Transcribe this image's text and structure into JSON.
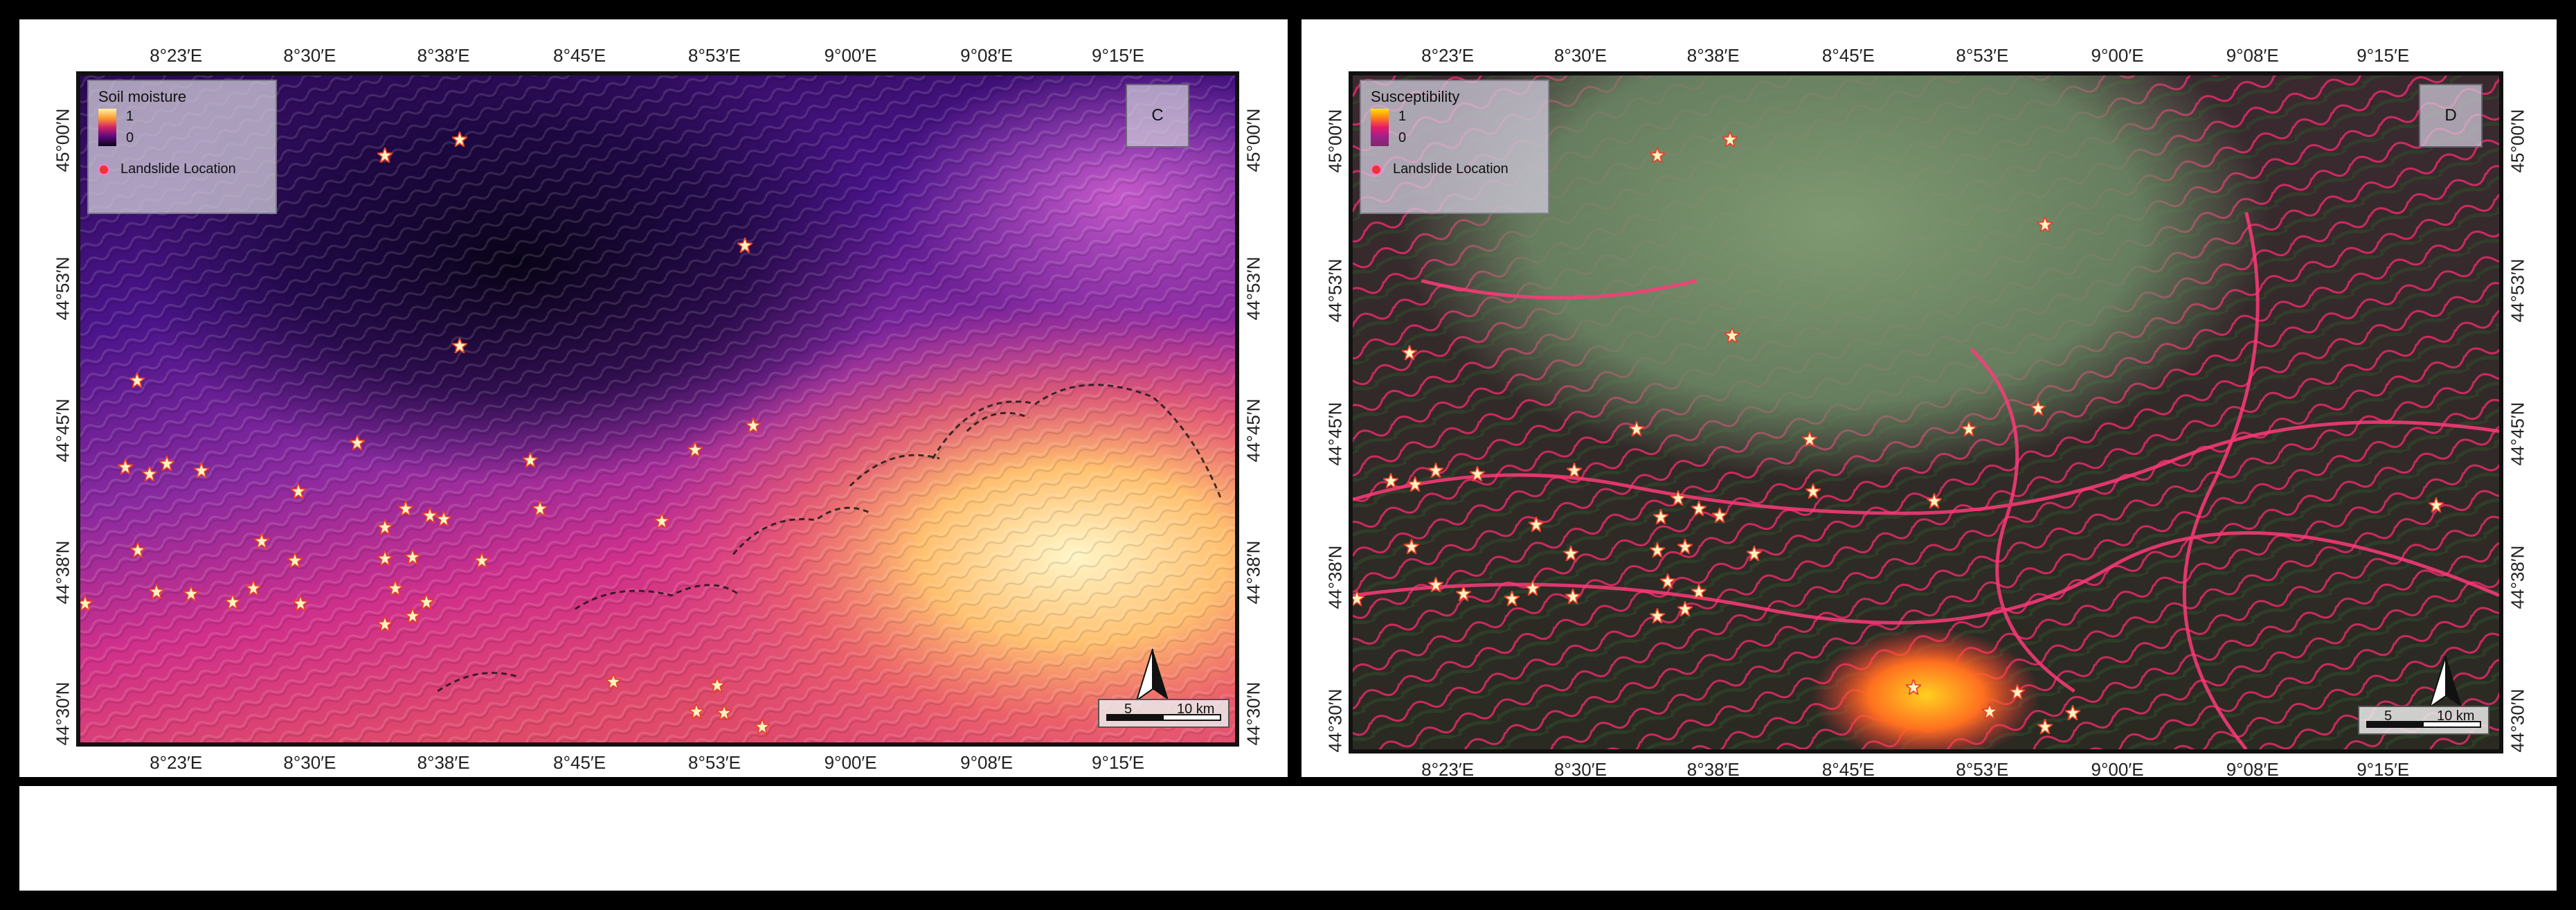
{
  "figure": {
    "panels": [
      {
        "id": "C",
        "letter": "C",
        "legend": {
          "title": "Soil moisture",
          "max_label": "1",
          "min_label": "0",
          "location_label": "Landslide Location",
          "ramp_colors": [
            "#fff2a8",
            "#ff9a2e",
            "#d0206a",
            "#5a0a7a",
            "#0b0418"
          ]
        },
        "lon_labels": [
          "8°23′E",
          "8°30′E",
          "8°38′E",
          "8°45′E",
          "8°53′E",
          "9°00′E",
          "9°08′E",
          "9°15′E"
        ],
        "lat_labels": [
          "45°00′N",
          "44°53′N",
          "44°45′N",
          "44°38′N",
          "44°30′N"
        ],
        "scale": {
          "first": "5",
          "second": "10 km"
        }
      },
      {
        "id": "D",
        "letter": "D",
        "legend": {
          "title": "Susceptibility",
          "max_label": "1",
          "min_label": "0",
          "location_label": "Landslide Location",
          "ramp_colors": [
            "#ffe400",
            "#ff7a1a",
            "#e6186a",
            "#a0208a",
            "#7a2a6a"
          ]
        },
        "lon_labels": [
          "8°23′E",
          "8°30′E",
          "8°38′E",
          "8°45′E",
          "8°53′E",
          "9°00′E",
          "9°08′E",
          "9°15′E"
        ],
        "lat_labels": [
          "45°00′N",
          "44°53′N",
          "44°45′N",
          "44°38′N",
          "44°30′N"
        ],
        "scale": {
          "first": "5",
          "second": "10 km"
        }
      }
    ]
  }
}
